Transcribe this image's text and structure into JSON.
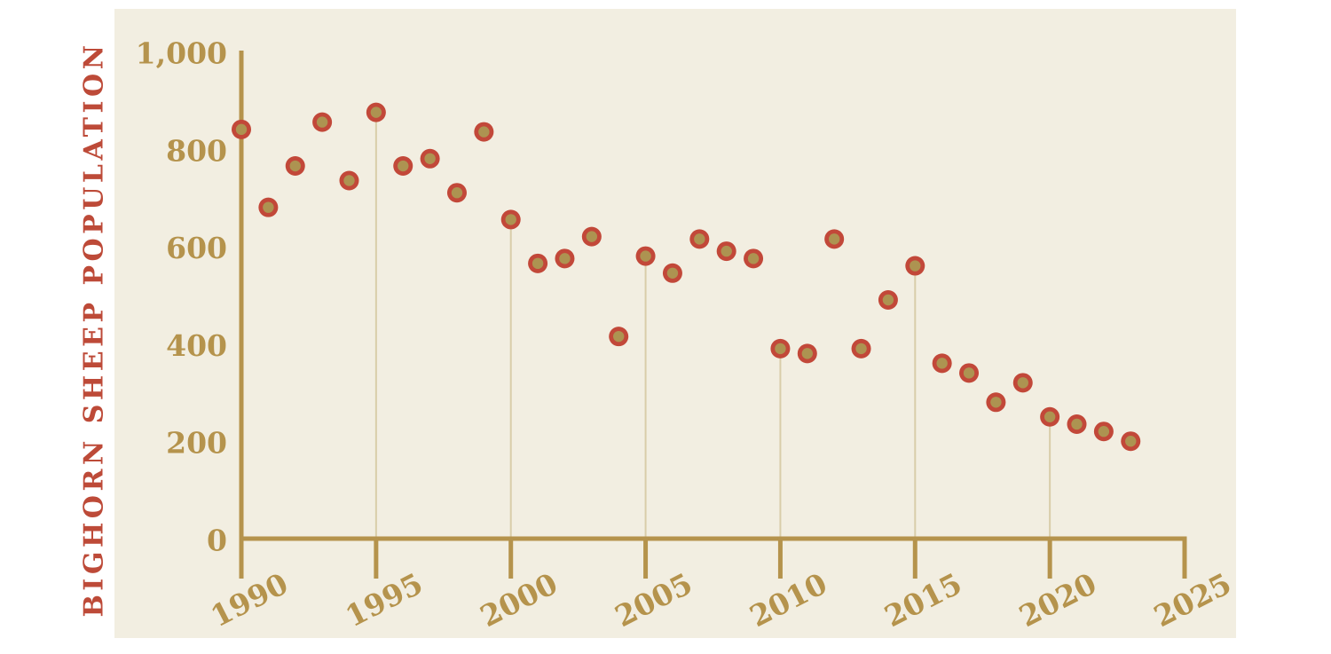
{
  "page": {
    "background_color": "#ffffff",
    "panel_color": "#f2eee1"
  },
  "chart_data": {
    "type": "scatter",
    "title": "",
    "ylabel": "BIGHORN SHEEP POPULATION",
    "xlabel": "",
    "x": [
      1990,
      1991,
      1992,
      1993,
      1994,
      1995,
      1996,
      1997,
      1998,
      1999,
      2000,
      2001,
      2002,
      2003,
      2004,
      2005,
      2006,
      2007,
      2008,
      2009,
      2010,
      2011,
      2012,
      2013,
      2014,
      2015,
      2016,
      2017,
      2018,
      2019,
      2020,
      2021,
      2022,
      2023
    ],
    "series": [
      {
        "name": "Bighorn sheep population",
        "values": [
          840,
          680,
          765,
          855,
          735,
          875,
          765,
          780,
          710,
          835,
          655,
          565,
          575,
          620,
          415,
          580,
          545,
          615,
          590,
          575,
          390,
          380,
          615,
          390,
          490,
          560,
          360,
          340,
          280,
          320,
          250,
          235,
          220,
          200
        ]
      }
    ],
    "xlim": [
      1990,
      2025
    ],
    "ylim": [
      0,
      1000
    ],
    "x_ticks": [
      1990,
      1995,
      2000,
      2005,
      2010,
      2015,
      2020,
      2025
    ],
    "x_tick_labels": [
      "1990",
      "1995",
      "2000",
      "2005",
      "2010",
      "2015",
      "2020",
      "2025"
    ],
    "x_tick_label_rotation_deg": -27,
    "y_ticks": [
      0,
      200,
      400,
      600,
      800,
      1000
    ],
    "y_tick_labels": [
      "0",
      "200",
      "400",
      "600",
      "800",
      "1,000"
    ],
    "stem_years": [
      1995,
      2000,
      2005,
      2010,
      2015,
      2020
    ],
    "grid": "thin vertical stems from x-axis up to the data point at each 5-year tick",
    "legend": "none",
    "colors": {
      "axis": "#b5934c",
      "tick_label": "#b5934c",
      "stem_line": "#d9cda9",
      "point_ring": "#c24839",
      "point_center": "#ad9351",
      "ylabel_text": "#bd4a38"
    }
  }
}
